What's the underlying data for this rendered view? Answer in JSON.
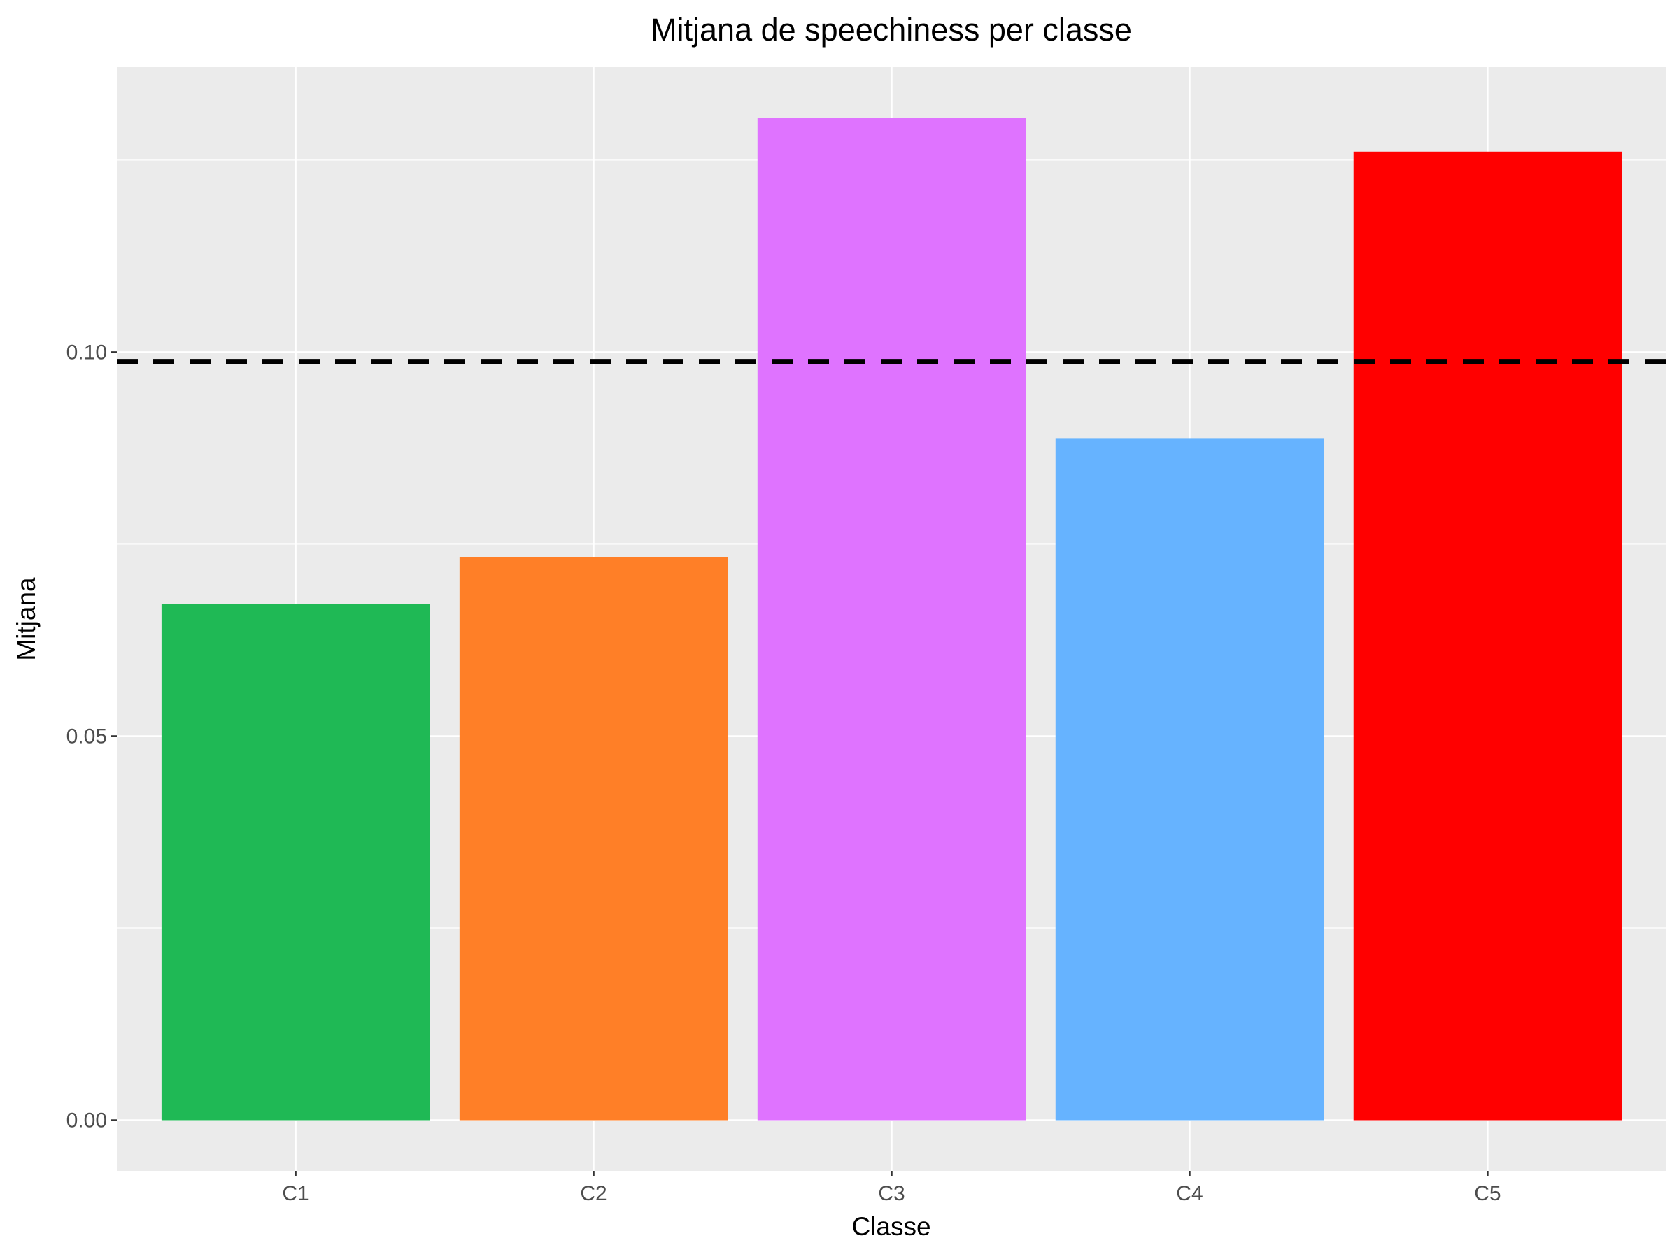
{
  "chart_data": {
    "type": "bar",
    "title": "Mitjana de speechiness per classe",
    "xlabel": "Classe",
    "ylabel": "Mitjana",
    "categories": [
      "C1",
      "C2",
      "C3",
      "C4",
      "C5"
    ],
    "values": [
      0.0672,
      0.0733,
      0.1305,
      0.0888,
      0.1261
    ],
    "colors": [
      "#1FB955",
      "#FF7F27",
      "#DF73FF",
      "#66B3FF",
      "#FF0000"
    ],
    "reference_line": {
      "value": 0.0988,
      "style": "dashed",
      "color": "#000000"
    },
    "ylim": [
      -0.0066,
      0.1371
    ],
    "yticks": [
      0.0,
      0.05,
      0.1
    ],
    "ytick_labels": [
      "0.00",
      "0.05",
      "0.10"
    ],
    "grid": true,
    "background": "#EBEBEB"
  }
}
